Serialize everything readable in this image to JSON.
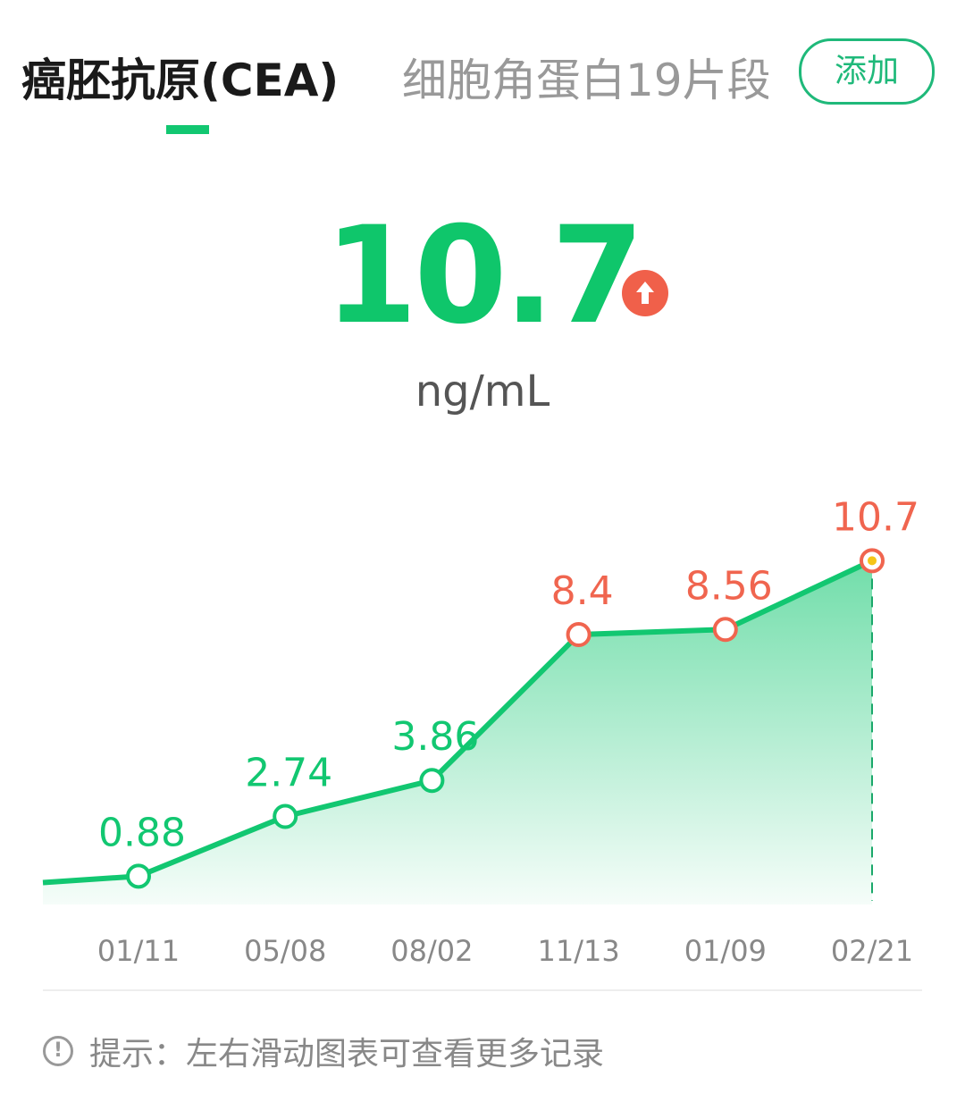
{
  "tabs": [
    {
      "label": "癌胚抗原(CEA)",
      "active": true
    },
    {
      "label": "细胞角蛋白19片段",
      "active": false
    }
  ],
  "add_button": "添加",
  "current": {
    "value": "10.7",
    "unit": "ng/mL",
    "trend_icon": "arrow-up-circle-icon",
    "trend_color": "#f0604a"
  },
  "colors": {
    "normal": "#12c771",
    "abnormal": "#f0654f",
    "fill": "#12c771"
  },
  "chart_data": {
    "type": "area",
    "categories": [
      "01/11",
      "05/08",
      "08/02",
      "11/13",
      "01/09",
      "02/21"
    ],
    "values": [
      0.88,
      2.74,
      3.86,
      8.4,
      8.56,
      10.7
    ],
    "labels": [
      "0.88",
      "2.74",
      "3.86",
      "8.4",
      "8.56",
      "10.7"
    ],
    "abnormal": [
      false,
      false,
      false,
      true,
      true,
      true
    ],
    "partial_prev_value": 0.68,
    "ylim": [
      0,
      12
    ],
    "grid": false,
    "selected_index": 5
  },
  "hint": {
    "icon": "info-circle-icon",
    "text": "提示：左右滑动图表可查看更多记录"
  }
}
